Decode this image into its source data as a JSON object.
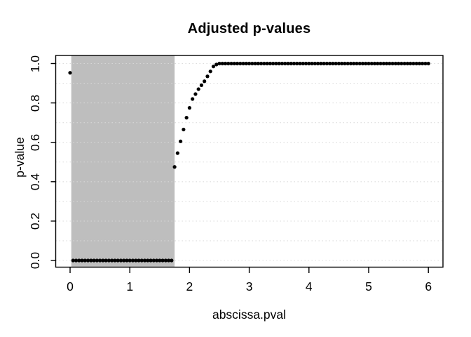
{
  "page": {
    "background": "#ffffff",
    "text_color": "#000000"
  },
  "chart_data": {
    "type": "scatter",
    "title": "Adjusted p-values",
    "xlabel": "abscissa.pval",
    "ylabel": "p-value",
    "xlim": [
      0,
      6
    ],
    "ylim": [
      0,
      1
    ],
    "x_tick_values": [
      0,
      1,
      2,
      3,
      4,
      5,
      6
    ],
    "x_tick_labels": [
      "0",
      "1",
      "2",
      "3",
      "4",
      "5",
      "6"
    ],
    "y_tick_values": [
      0,
      0.2,
      0.4,
      0.6,
      0.8,
      1
    ],
    "y_tick_labels": [
      "0.0",
      "0.2",
      "0.4",
      "0.6",
      "0.8",
      "1.0"
    ],
    "grid": {
      "orientation": "horizontal",
      "values": [
        0,
        0.1,
        0.2,
        0.3,
        0.4,
        0.5,
        0.6,
        0.7,
        0.8,
        0.9,
        1.0
      ],
      "style": "dotted",
      "color": "#d9d9d9"
    },
    "shaded_region": {
      "x_start": 0.02,
      "x_end": 1.75,
      "full_height": true,
      "color": "#bebebe"
    },
    "point_style": {
      "shape": "filled-circle",
      "color": "#000000",
      "radius_px": 2.6
    },
    "legend": null,
    "points": {
      "x_start": 0,
      "x_step": 0.05,
      "x_end": 6,
      "y": [
        0.953,
        0,
        0,
        0,
        0,
        0,
        0,
        0,
        0,
        0,
        0,
        0,
        0,
        0,
        0,
        0,
        0,
        0,
        0,
        0,
        0,
        0,
        0,
        0,
        0,
        0,
        0,
        0,
        0,
        0,
        0,
        0,
        0,
        0,
        0,
        0.475,
        0.545,
        0.605,
        0.665,
        0.725,
        0.775,
        0.82,
        0.845,
        0.87,
        0.89,
        0.91,
        0.935,
        0.96,
        0.985,
        0.995,
        1,
        1,
        1,
        1,
        1,
        1,
        1,
        1,
        1,
        1,
        1,
        1,
        1,
        1,
        1,
        1,
        1,
        1,
        1,
        1,
        1,
        1,
        1,
        1,
        1,
        1,
        1,
        1,
        1,
        1,
        1,
        1,
        1,
        1,
        1,
        1,
        1,
        1,
        1,
        1,
        1,
        1,
        1,
        1,
        1,
        1,
        1,
        1,
        1,
        1,
        1,
        1,
        1,
        1,
        1,
        1,
        1,
        1,
        1,
        1,
        1,
        1,
        1,
        1,
        1,
        1,
        1,
        1,
        1,
        1,
        1
      ]
    }
  }
}
